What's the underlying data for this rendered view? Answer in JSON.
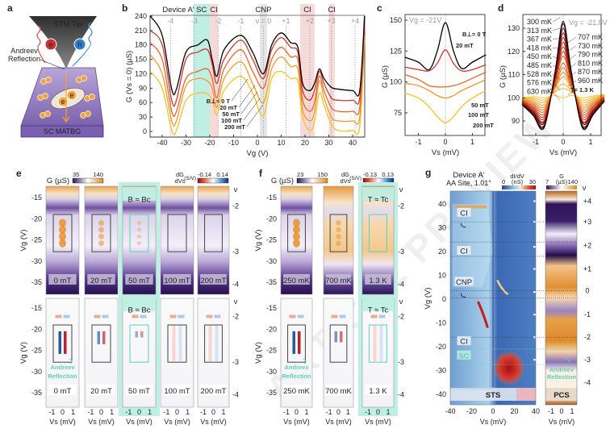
{
  "watermark": "ARTICLE PREVIEW",
  "panel_labels": {
    "a": "a",
    "b": "b",
    "c": "c",
    "d": "d",
    "e": "e",
    "f": "f",
    "g": "g"
  },
  "panel_a": {
    "tip": "STM Tip",
    "electron": "e",
    "hole": "h",
    "andreev_1": "Andreev",
    "andreev_2": "Reflection",
    "substrate": "SC MATBG",
    "pair_e": "e"
  },
  "chart_data": [
    {
      "id": "b",
      "type": "line",
      "title": "Device A'",
      "xlabel": "Vg (V)",
      "ylabel": "G (Vs = 0) (µS)",
      "xlim": [
        -45,
        45
      ],
      "ylim": [
        0,
        240
      ],
      "xticks": [
        "-40",
        "-30",
        "-20",
        "-10",
        "0",
        "10",
        "20",
        "30",
        "40"
      ],
      "xtick_values": [
        -40,
        -30,
        -20,
        -10,
        0,
        10,
        20,
        30,
        40
      ],
      "yticks": [
        "0",
        "30",
        "60",
        "90",
        "120",
        "150",
        "180",
        "210",
        "240"
      ],
      "ytick_values": [
        0,
        30,
        60,
        90,
        120,
        150,
        180,
        210,
        240
      ],
      "regions": [
        {
          "label": "SC",
          "from": -27,
          "to": -20,
          "color": "#bfeee3"
        },
        {
          "label": "CI",
          "from": -20,
          "to": -16.5,
          "color": "#f6d9d9"
        },
        {
          "label": "CNP",
          "from": 1,
          "to": 4,
          "color": "#e4e4e4"
        },
        {
          "label": "CI",
          "from": 18,
          "to": 24,
          "color": "#f6d9d9"
        },
        {
          "label": "CI",
          "from": 30,
          "to": 32.5,
          "color": "#f6d9d9"
        }
      ],
      "filling_labels": [
        {
          "label": "-4",
          "vg": -36.5
        },
        {
          "label": "-3",
          "vg": -26.5
        },
        {
          "label": "-2",
          "vg": -16.5
        },
        {
          "label": "-1",
          "vg": -7
        },
        {
          "label": "ν = 0",
          "vg": 2.5
        },
        {
          "label": "+1",
          "vg": 12
        },
        {
          "label": "+2",
          "vg": 22
        },
        {
          "label": "+3",
          "vg": 31
        },
        {
          "label": "+4",
          "vg": 41
        }
      ],
      "x": [
        -45,
        -40,
        -36,
        -34,
        -30,
        -25,
        -21,
        -19,
        -17,
        -14,
        -7,
        -2,
        2.5,
        6,
        10,
        14,
        17,
        19,
        22,
        24,
        26,
        28,
        31,
        34,
        40,
        43,
        45
      ],
      "series": [
        {
          "name": "B⊥= 0 T",
          "color": "#000000",
          "values": [
            240,
            200,
            88,
            88,
            165,
            180,
            190,
            150,
            115,
            170,
            200,
            165,
            120,
            180,
            205,
            185,
            175,
            100,
            85,
            100,
            130,
            110,
            92,
            88,
            85,
            85,
            240
          ]
        },
        {
          "name": "20 mT",
          "color": "#c83a2e",
          "values": [
            210,
            180,
            65,
            65,
            150,
            165,
            170,
            140,
            100,
            150,
            190,
            150,
            110,
            170,
            195,
            175,
            165,
            85,
            65,
            85,
            125,
            100,
            70,
            65,
            65,
            70,
            230
          ]
        },
        {
          "name": "50 mT",
          "color": "#e8642a",
          "values": [
            185,
            150,
            42,
            42,
            110,
            125,
            130,
            110,
            70,
            130,
            170,
            125,
            90,
            150,
            175,
            155,
            150,
            65,
            42,
            60,
            115,
            85,
            50,
            42,
            42,
            50,
            220
          ]
        },
        {
          "name": "100 mT",
          "color": "#f39a28",
          "values": [
            160,
            120,
            22,
            22,
            95,
            110,
            105,
            90,
            50,
            110,
            145,
            100,
            60,
            130,
            155,
            135,
            130,
            45,
            22,
            40,
            105,
            70,
            30,
            22,
            22,
            30,
            200
          ]
        },
        {
          "name": "200 mT",
          "color": "#f5c22a",
          "values": [
            125,
            90,
            2,
            2,
            65,
            80,
            78,
            65,
            35,
            85,
            115,
            80,
            32,
            110,
            125,
            110,
            105,
            30,
            2,
            20,
            80,
            55,
            15,
            2,
            2,
            10,
            190
          ]
        }
      ]
    },
    {
      "id": "c",
      "type": "line",
      "annotation": "Vg = -21V",
      "xlabel": "Vs (mV)",
      "ylabel": "G (µS)",
      "xlim": [
        -1.5,
        1.5
      ],
      "ylim": [
        58,
        155
      ],
      "xticks": [
        "-1",
        "0",
        "1"
      ],
      "xtick_values": [
        -1,
        0,
        1
      ],
      "yticks": [
        "75",
        "100",
        "125",
        "150"
      ],
      "ytick_values": [
        75,
        100,
        125,
        150
      ],
      "x": [
        -1.5,
        -1,
        -0.6,
        -0.3,
        0,
        0.3,
        0.6,
        1,
        1.5
      ],
      "series": [
        {
          "name": "B⊥= 0 T",
          "color": "#000000",
          "values": [
            120,
            116,
            110,
            125,
            148,
            125,
            111,
            116,
            122
          ]
        },
        {
          "name": "20 mT",
          "color": "#c83a2e",
          "values": [
            112,
            110,
            109,
            115,
            126,
            115,
            109,
            110,
            114
          ]
        },
        {
          "name": "50 mT",
          "color": "#e8642a",
          "values": [
            106,
            102,
            97,
            96,
            96,
            97,
            99,
            103,
            108
          ]
        },
        {
          "name": "100 mT",
          "color": "#f39a28",
          "values": [
            99,
            97,
            93,
            89,
            87,
            89,
            93,
            97,
            102
          ]
        },
        {
          "name": "200 mT",
          "color": "#f5c22a",
          "values": [
            91,
            87,
            80,
            72,
            67,
            72,
            80,
            87,
            93
          ]
        }
      ]
    },
    {
      "id": "d",
      "type": "line",
      "annotation": "Vg = -21.8V",
      "xlabel": "Vs (mV)",
      "ylabel": "G (µS)",
      "xlim": [
        -1.5,
        1.5
      ],
      "ylim": [
        84,
        135
      ],
      "xticks": [
        "-1",
        "0",
        "1"
      ],
      "xtick_values": [
        -1,
        0,
        1
      ],
      "yticks": [
        "90",
        "100",
        "110",
        "120",
        "130"
      ],
      "ytick_values": [
        90,
        100,
        110,
        120,
        130
      ],
      "series": [
        {
          "name": "300 mK",
          "peak": 133,
          "dip": 87,
          "edge": 97
        },
        {
          "name": "313 mK",
          "peak": 132,
          "dip": 87.5,
          "edge": 97
        },
        {
          "name": "367 mK",
          "peak": 130,
          "dip": 88,
          "edge": 97.3
        },
        {
          "name": "418 mK",
          "peak": 128,
          "dip": 89,
          "edge": 97.5
        },
        {
          "name": "450 mK",
          "peak": 126,
          "dip": 89.5,
          "edge": 97.7
        },
        {
          "name": "485 mK",
          "peak": 124,
          "dip": 90,
          "edge": 98
        },
        {
          "name": "528 mK",
          "peak": 122,
          "dip": 91,
          "edge": 98.2
        },
        {
          "name": "576 mK",
          "peak": 120,
          "dip": 92,
          "edge": 98.4
        },
        {
          "name": "630 mK",
          "peak": 118,
          "dip": 93,
          "edge": 98.6
        },
        {
          "name": "707 mK",
          "peak": 115,
          "dip": 94,
          "edge": 98.8
        },
        {
          "name": "730 mK",
          "peak": 113,
          "dip": 95,
          "edge": 99
        },
        {
          "name": "790 mK",
          "peak": 111,
          "dip": 96,
          "edge": 99.2
        },
        {
          "name": "810 mK",
          "peak": 109,
          "dip": 97,
          "edge": 99.4
        },
        {
          "name": "870 mK",
          "peak": 106,
          "dip": 98,
          "edge": 99.6
        },
        {
          "name": "960 mK",
          "peak": 104,
          "dip": 99,
          "edge": 99.8
        },
        {
          "name": "T= 1.3 K",
          "peak": 100,
          "dip": 100,
          "edge": 100
        }
      ]
    },
    {
      "id": "e",
      "type": "heatmap",
      "colorbar_G": {
        "label": "G (µS)",
        "min": "35",
        "max": "140"
      },
      "colorbar_dG": {
        "label_top": "dG",
        "label_bottom": "dVs",
        "unit": "(S/V)",
        "min": "-0.14",
        "max": "0.14"
      },
      "ylabel": "Vg (V)",
      "xlabel": "Vs (mV)",
      "yticks": [
        "-15",
        "-20",
        "-25",
        "-30",
        "-35"
      ],
      "ytick_values": [
        -15,
        -20,
        -25,
        -30,
        -35
      ],
      "xticks": [
        "-1",
        "0",
        "1"
      ],
      "nu_label": "ν",
      "nu_ticks": [
        "-2",
        "-3",
        "-4"
      ],
      "critical_label": "B ≈ Bc",
      "andreev_1": "Andreev",
      "andreev_2": "Reflection",
      "columns": [
        {
          "label": "0 mT",
          "strength": 1.0,
          "critical": false
        },
        {
          "label": "20 mT",
          "strength": 0.5,
          "critical": false
        },
        {
          "label": "50 mT",
          "strength": 0.15,
          "critical": true
        },
        {
          "label": "100 mT",
          "strength": 0.0,
          "critical": false
        },
        {
          "label": "200 mT",
          "strength": 0.0,
          "critical": false
        }
      ]
    },
    {
      "id": "f",
      "type": "heatmap",
      "colorbar_G": {
        "label": "G (µS)",
        "min": "23",
        "max": "150"
      },
      "colorbar_dG": {
        "label_top": "dG",
        "label_bottom": "dVs",
        "unit": "(S/V)",
        "min": "-0.13",
        "max": "0.13"
      },
      "ylabel": "Vg (V)",
      "xlabel": "Vs (mV)",
      "yticks": [
        "-15",
        "-20",
        "-25",
        "-30",
        "-35"
      ],
      "ytick_values": [
        -15,
        -20,
        -25,
        -30,
        -35
      ],
      "xticks": [
        "-1",
        "0",
        "1"
      ],
      "nu_label": "ν",
      "nu_ticks": [
        "-2",
        "-3",
        "-4"
      ],
      "critical_label": "T ≈ Tc",
      "andreev_1": "Andreev",
      "andreev_2": "Reflection",
      "columns": [
        {
          "label": "250 mK",
          "strength": 1.0,
          "critical": false
        },
        {
          "label": "700 mK",
          "strength": 0.4,
          "critical": false
        },
        {
          "label": "1.3 K",
          "strength": 0.0,
          "critical": true
        }
      ]
    },
    {
      "id": "g",
      "type": "heatmap",
      "title_1": "Device A'",
      "title_2": "AA Site, 1.01°",
      "colorbar_sts": {
        "label_1": "dI/dV",
        "label_2": "(nS)",
        "min": "0",
        "max": "30"
      },
      "colorbar_pcs": {
        "label_1": "G",
        "label_2": "(µS)",
        "min": "7",
        "max": "140"
      },
      "nu_label": "ν",
      "ylabel": "Vg (V)",
      "yticks": [
        "40",
        "30",
        "20",
        "10",
        "0",
        "-10",
        "-20",
        "-30",
        "-40"
      ],
      "ytick_values": [
        40,
        30,
        20,
        10,
        0,
        -10,
        -20,
        -30,
        -40
      ],
      "sts_xticks": [
        "-40",
        "-20",
        "0",
        "20",
        "40"
      ],
      "sts_xtick_values": [
        -40,
        -20,
        0,
        20,
        40
      ],
      "pcs_xticks": [
        "-1",
        "0",
        "1"
      ],
      "xlabel": "Vs (mV)",
      "nu_ticks": [
        "+4",
        "+3",
        "+2",
        "+1",
        "0",
        "-1",
        "-2",
        "-3",
        "-4"
      ],
      "nu_vg": [
        41.2,
        32.5,
        22.6,
        12.7,
        3.5,
        -6.5,
        -16,
        -25.5,
        -35
      ],
      "region_labels": [
        {
          "label": "CI",
          "vg": 36
        },
        {
          "label": "CI",
          "vg": 20
        },
        {
          "label": "CNP",
          "vg": 7
        },
        {
          "label": "CI",
          "vg": -18
        },
        {
          "label": "SC",
          "vg": -24
        }
      ],
      "sts_label": "STS",
      "pcs_label": "PCS",
      "andreev_1": "Andreev",
      "andreev_2": "Reflection"
    }
  ]
}
